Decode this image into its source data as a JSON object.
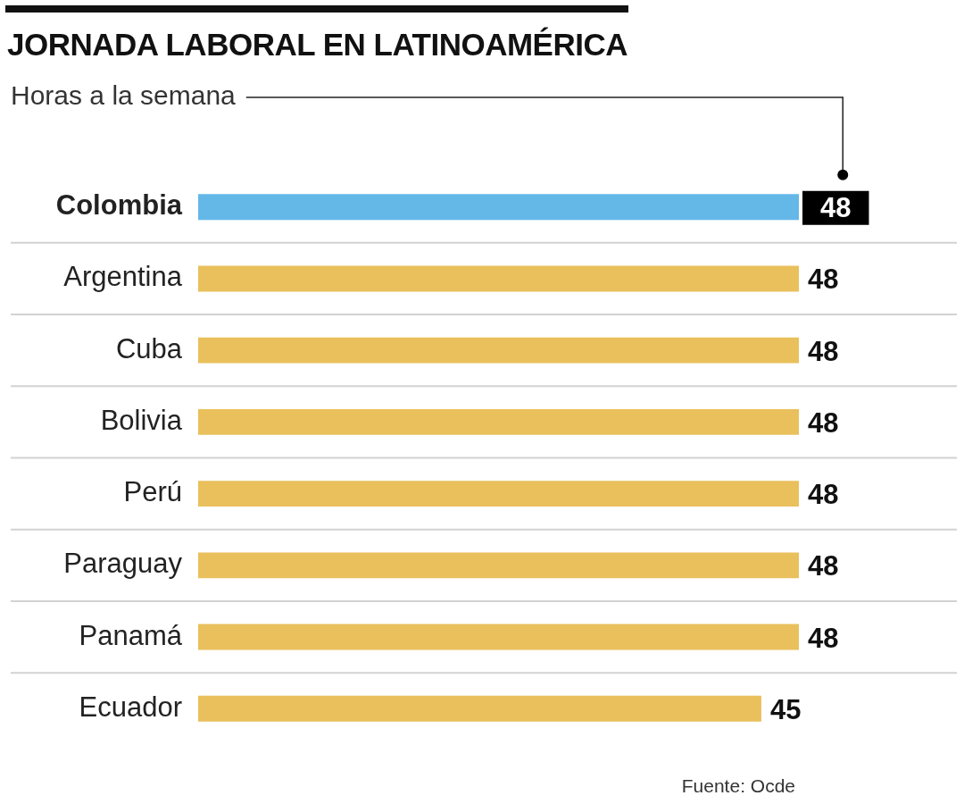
{
  "chart_data": {
    "type": "bar",
    "orientation": "horizontal",
    "title": "JORNADA LABORAL EN LATINOAMÉRICA",
    "subtitle": "Horas a la semana",
    "categories": [
      "Colombia",
      "Argentina",
      "Cuba",
      "Bolivia",
      "Perú",
      "Paraguay",
      "Panamá",
      "Ecuador"
    ],
    "values": [
      48,
      48,
      48,
      48,
      48,
      48,
      48,
      45
    ],
    "colors": [
      "#63b8e8",
      "#e9c05c",
      "#e9c05c",
      "#e9c05c",
      "#e9c05c",
      "#e9c05c",
      "#e9c05c",
      "#e9c05c"
    ],
    "data_labels": true,
    "grid": "y",
    "annotations": [
      "Fuente: Ocde"
    ]
  }
}
